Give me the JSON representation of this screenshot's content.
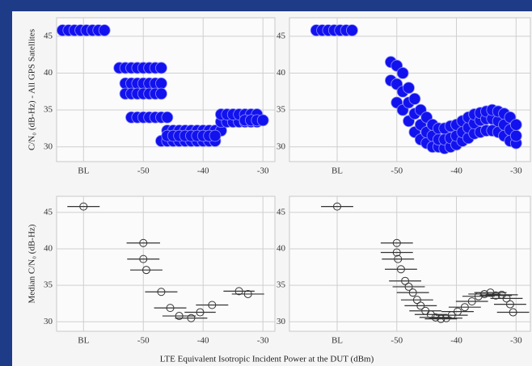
{
  "xlabel": "LTE Equivalent Isotropic Incident Power at the DUT (dBm)",
  "chart_data": [
    {
      "type": "scatter",
      "ylabel": "C/N₀ (dB-Hz) - All GPS Satellites",
      "color": "#1212ee",
      "grid": true,
      "xlim": [
        -64.5,
        -28
      ],
      "ylim": [
        28,
        47.5
      ],
      "xticks": [
        {
          "value": -60,
          "label": "BL"
        },
        -50,
        -40,
        -30
      ],
      "yticks": [
        30,
        35,
        40,
        45
      ],
      "x": [
        -63.5,
        -62.5,
        -61.5,
        -60.5,
        -59.5,
        -58.5,
        -57.5,
        -56.5,
        -54,
        -53,
        -52,
        -51,
        -50,
        -49,
        -48,
        -47,
        -53,
        -52,
        -51,
        -50,
        -49,
        -48,
        -47,
        -53,
        -52,
        -51,
        -50,
        -49,
        -48,
        -47,
        -52,
        -51,
        -50,
        -49,
        -48,
        -47,
        -46,
        -47,
        -46,
        -45,
        -44,
        -43,
        -42,
        -41,
        -40,
        -39,
        -38,
        -46,
        -45,
        -44,
        -43,
        -42,
        -41,
        -40,
        -39,
        -38,
        -37,
        -46,
        -45,
        -44,
        -43,
        -42,
        -41,
        -40,
        -39,
        -38,
        -37,
        -36,
        -35,
        -34,
        -33,
        -32,
        -31,
        -37,
        -36,
        -35,
        -34,
        -33,
        -32,
        -31,
        -33,
        -32,
        -31,
        -30
      ],
      "y": [
        45.8,
        45.8,
        45.8,
        45.8,
        45.8,
        45.8,
        45.8,
        45.8,
        40.7,
        40.7,
        40.7,
        40.7,
        40.7,
        40.7,
        40.7,
        40.7,
        38.6,
        38.6,
        38.6,
        38.6,
        38.6,
        38.6,
        38.6,
        37.2,
        37.2,
        37.2,
        37.2,
        37.2,
        37.2,
        37.2,
        34,
        34,
        34,
        34,
        34,
        34,
        34,
        30.8,
        30.8,
        30.8,
        30.8,
        30.8,
        30.8,
        30.8,
        30.8,
        30.8,
        30.8,
        32.2,
        32.2,
        32.2,
        32.2,
        32.2,
        32.2,
        32.2,
        32.2,
        32.2,
        32.2,
        31.5,
        31.5,
        31.5,
        31.5,
        31.5,
        31.5,
        31.5,
        31.5,
        31.5,
        33.4,
        33.4,
        33.4,
        33.4,
        33.4,
        33.4,
        33.4,
        34.4,
        34.4,
        34.4,
        34.4,
        34.4,
        34.4,
        34.4,
        33.6,
        33.6,
        33.6,
        33.6
      ]
    },
    {
      "type": "scatter",
      "color": "#1212ee",
      "grid": true,
      "xlim": [
        -68,
        -27.6
      ],
      "ylim": [
        28,
        47.5
      ],
      "xticks": [
        {
          "value": -60,
          "label": "BL"
        },
        -50,
        -40,
        -30
      ],
      "yticks": [
        30,
        35,
        40,
        45
      ],
      "x": [
        -63.5,
        -62.5,
        -61.5,
        -60.5,
        -59.5,
        -58.5,
        -57.5,
        -51,
        -51,
        -50,
        -50,
        -50,
        -49,
        -49,
        -49,
        -48,
        -48,
        -48,
        -47,
        -47,
        -47,
        -46,
        -46,
        -46,
        -45,
        -45,
        -45,
        -44,
        -44,
        -44,
        -43,
        -43,
        -43,
        -42,
        -42,
        -42,
        -41,
        -41,
        -41,
        -40,
        -40,
        -40,
        -39,
        -39,
        -39,
        -38,
        -38,
        -38,
        -37,
        -37,
        -37,
        -36,
        -36,
        -36,
        -35,
        -35,
        -35,
        -34,
        -34,
        -34,
        -33,
        -33,
        -33,
        -32,
        -32,
        -32,
        -31,
        -31,
        -31,
        -30,
        -30,
        -30
      ],
      "y": [
        45.8,
        45.8,
        45.8,
        45.8,
        45.8,
        45.8,
        45.8,
        39,
        41.5,
        36,
        38.5,
        41,
        35,
        37.5,
        40,
        33.5,
        36,
        38,
        32,
        34.5,
        36.5,
        31,
        33,
        35,
        30.5,
        32,
        34,
        30,
        31.5,
        33,
        30,
        31,
        32.5,
        29.8,
        31,
        32.5,
        30,
        31.2,
        32.8,
        30.3,
        31.5,
        33,
        30.8,
        32,
        33.5,
        31.2,
        32.6,
        34,
        31.8,
        33.2,
        34.4,
        32,
        33.6,
        34.6,
        32.2,
        33.8,
        34.8,
        32.2,
        33.8,
        35,
        32,
        33.5,
        34.8,
        31.5,
        33,
        34.5,
        30.8,
        32.3,
        34,
        30.5,
        31.5,
        33
      ]
    },
    {
      "type": "errorbar",
      "ylabel": "Median C/N₀ (dB-Hz)",
      "color": "#333333",
      "grid": true,
      "xlim": [
        -64.5,
        -28
      ],
      "ylim": [
        28.7,
        47.2
      ],
      "xticks": [
        {
          "value": -60,
          "label": "BL"
        },
        -50,
        -40,
        -30
      ],
      "yticks": [
        30,
        35,
        40,
        45
      ],
      "x": [
        -60,
        -50,
        -50,
        -49.5,
        -47,
        -45.5,
        -44,
        -42,
        -40.5,
        -38.5,
        -34,
        -32.5
      ],
      "y": [
        45.8,
        40.8,
        38.6,
        37.1,
        34.1,
        31.9,
        30.8,
        30.5,
        31.3,
        32.3,
        34.2,
        33.8
      ],
      "xerr": [
        2.7,
        2.8,
        2.7,
        2.7,
        2.7,
        2.7,
        2.8,
        2.7,
        2.6,
        2.7,
        2.6,
        2.7
      ]
    },
    {
      "type": "errorbar",
      "color": "#333333",
      "grid": true,
      "xlim": [
        -68,
        -27.6
      ],
      "ylim": [
        28.7,
        47.2
      ],
      "xticks": [
        {
          "value": -60,
          "label": "BL"
        },
        -50,
        -40,
        -30
      ],
      "yticks": [
        30,
        35,
        40,
        45
      ],
      "x": [
        -60,
        -50,
        -50,
        -49.8,
        -49.3,
        -48.6,
        -48,
        -47.3,
        -46.6,
        -46,
        -45.2,
        -44.3,
        -43.5,
        -42.6,
        -41.7,
        -40.8,
        -39.8,
        -38.6,
        -37.4,
        -36.3,
        -35.3,
        -34.3,
        -33.4,
        -32.4,
        -31.6,
        -31,
        -30.5
      ],
      "y": [
        45.8,
        40.8,
        39.5,
        38.6,
        37.2,
        35.6,
        34.8,
        34,
        33,
        32.2,
        31.5,
        31,
        30.6,
        30.4,
        30.5,
        30.9,
        31.4,
        32,
        32.8,
        33.5,
        33.8,
        34,
        33.6,
        33.7,
        33.2,
        32.4,
        31.3
      ],
      "xerr": [
        2.7,
        2.7,
        2.7,
        2.7,
        2.7,
        2.7,
        2.7,
        2.7,
        2.7,
        2.7,
        2.7,
        2.7,
        2.7,
        2.7,
        2.7,
        2.7,
        2.7,
        2.7,
        2.7,
        2.7,
        2.7,
        2.7,
        2.7,
        2.7,
        2.7,
        2.7,
        2.7
      ]
    }
  ]
}
